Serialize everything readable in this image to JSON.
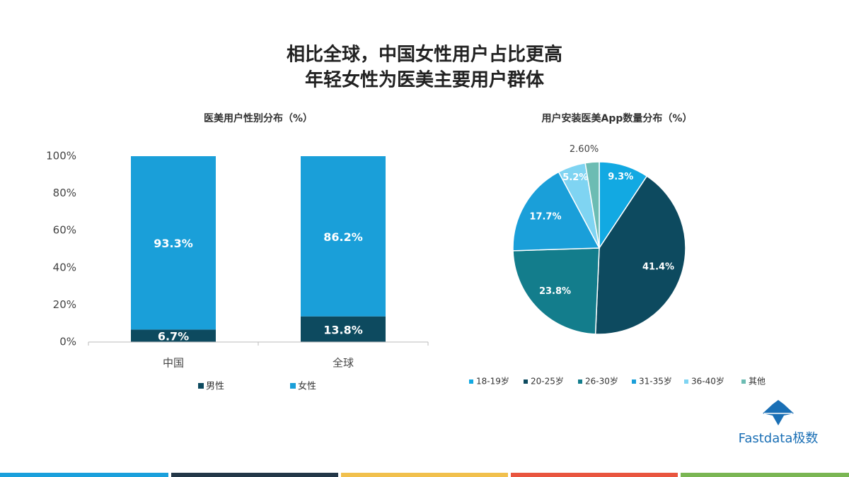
{
  "header": {
    "title": [
      "相比全球，中国女性用户占比更高",
      "年轻女性为医美主要用户群体"
    ]
  },
  "brand": "Fastdata极数",
  "chart_data": [
    {
      "type": "stacked_bar",
      "title": "医美用户性别分布（%）",
      "categories": [
        "中国",
        "全球"
      ],
      "series": [
        {
          "name": "男性",
          "color": "#0d4a5f",
          "values": [
            6.7,
            13.8
          ],
          "value_labels": [
            "6.7%",
            "13.8%"
          ]
        },
        {
          "name": "女性",
          "color": "#1a9fd9",
          "values": [
            93.3,
            86.2
          ],
          "value_labels": [
            "93.3%",
            "86.2%"
          ]
        }
      ],
      "ylim": [
        0,
        100
      ],
      "yticks": [
        {
          "value": 0,
          "label": "0%"
        },
        {
          "value": 20,
          "label": "20%"
        },
        {
          "value": 40,
          "label": "40%"
        },
        {
          "value": 60,
          "label": "60%"
        },
        {
          "value": 80,
          "label": "80%"
        },
        {
          "value": 100,
          "label": "100%"
        }
      ],
      "legend": "bottom"
    },
    {
      "type": "pie",
      "title": "用户安装医美App数量分布（%）",
      "categories": [
        "18-19岁",
        "20-25岁",
        "26-30岁",
        "31-35岁",
        "36-40岁",
        "其他"
      ],
      "values": [
        9.3,
        41.4,
        23.8,
        17.7,
        5.2,
        2.6
      ],
      "value_labels": [
        "9.3%",
        "41.4%",
        "23.8%",
        "17.7%",
        "5.2%",
        "2.60%"
      ],
      "colors": [
        "#12a9e2",
        "#0d4a5f",
        "#137d8c",
        "#1a9fd9",
        "#7fd4f2",
        "#6cbcb3"
      ],
      "legend": "bottom"
    }
  ]
}
